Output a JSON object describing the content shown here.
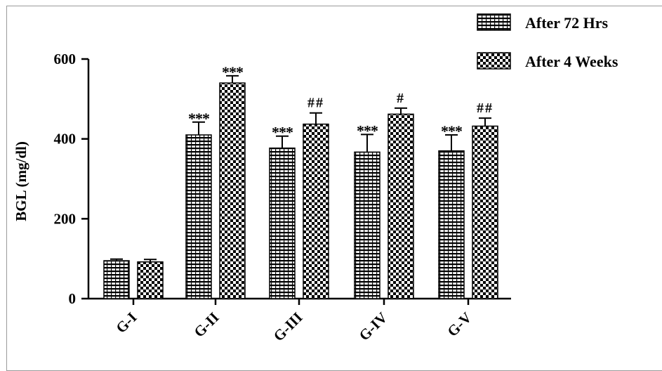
{
  "chart_data": {
    "type": "bar",
    "title": "",
    "xlabel": "",
    "ylabel": "BGL (mg/dl)",
    "ylim": [
      0,
      600
    ],
    "yticks": [
      "0",
      "200",
      "400",
      "600"
    ],
    "categories": [
      "G-I",
      "G-II",
      "G-III",
      "G-IV",
      "G-V"
    ],
    "series": [
      {
        "name": "After 72 Hrs",
        "values": [
          95,
          410,
          377,
          367,
          370
        ],
        "errors": [
          4,
          32,
          30,
          44,
          40
        ],
        "annotations": [
          "",
          "***",
          "***",
          "***",
          "***"
        ]
      },
      {
        "name": "After 4 Weeks",
        "values": [
          92,
          540,
          437,
          462,
          432
        ],
        "errors": [
          6,
          18,
          28,
          15,
          20
        ],
        "annotations": [
          "",
          "***",
          "##",
          "#",
          "##"
        ]
      }
    ],
    "legend_position": "top-right",
    "grid": false,
    "colors": {
      "bars": "#000000",
      "bar_fill": "#ffffff",
      "axis": "#000000"
    }
  }
}
